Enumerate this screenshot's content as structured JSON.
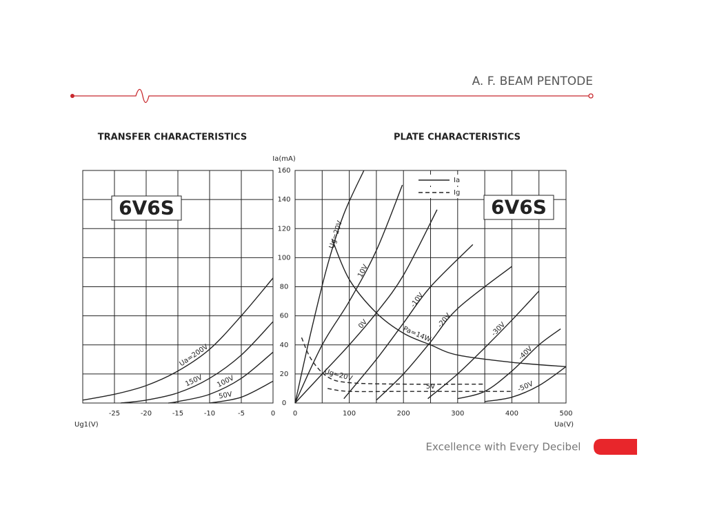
{
  "header": {
    "title": "A. F. BEAM PENTODE"
  },
  "footer": {
    "tagline": "Excellence with Every Decibel"
  },
  "chart_data": [
    {
      "type": "line",
      "title": "TRANSFER CHARACTERISTICS",
      "badge": "6V6S",
      "xlabel": "Ug1(V)",
      "xlim": [
        -30,
        0
      ],
      "xticks": [
        -25,
        -20,
        -15,
        -10,
        -5,
        0
      ],
      "ylim": [
        0,
        160
      ],
      "yticks": [
        0,
        20,
        40,
        60,
        80,
        100,
        120,
        140,
        160
      ],
      "grid": true,
      "show_yticks": false,
      "series": [
        {
          "name": "Ua=200V",
          "color": "#222222",
          "style": "solid",
          "x": [
            -30,
            -25,
            -20,
            -15,
            -10,
            -5,
            0
          ],
          "values": [
            2,
            6,
            12,
            22,
            37,
            60,
            86
          ]
        },
        {
          "name": "150V",
          "color": "#222222",
          "style": "solid",
          "x": [
            -24,
            -20,
            -15,
            -10,
            -5,
            0
          ],
          "values": [
            0,
            2,
            7,
            17,
            33,
            56
          ]
        },
        {
          "name": "100V",
          "color": "#222222",
          "style": "solid",
          "x": [
            -16.5,
            -15,
            -10,
            -5,
            0
          ],
          "values": [
            0,
            1,
            6,
            17,
            35
          ]
        },
        {
          "name": "50V",
          "color": "#222222",
          "style": "solid",
          "x": [
            -10,
            -5,
            0
          ],
          "values": [
            0,
            4,
            15
          ]
        }
      ]
    },
    {
      "type": "line",
      "title": "PLATE CHARACTERISTICS",
      "badge": "6V6S",
      "xlabel": "Ua(V)",
      "ylabel": "Ia(mA)",
      "xlim": [
        0,
        500
      ],
      "xticks": [
        0,
        100,
        200,
        300,
        400,
        500
      ],
      "xminor": [
        50,
        150,
        250,
        350,
        450
      ],
      "ylim": [
        0,
        160
      ],
      "yticks": [
        0,
        20,
        40,
        60,
        80,
        100,
        120,
        140,
        160
      ],
      "grid": true,
      "show_yticks": true,
      "legend": {
        "entries": [
          {
            "label": "Ia",
            "style": "solid"
          },
          {
            "label": "Ig",
            "style": "dashed"
          }
        ]
      },
      "series": [
        {
          "name": "Ug=20V",
          "color": "#222222",
          "style": "solid",
          "x": [
            0,
            30,
            60,
            90,
            127
          ],
          "values": [
            0,
            50,
            95,
            130,
            160
          ]
        },
        {
          "name": "10V",
          "color": "#222222",
          "style": "solid",
          "x": [
            0,
            50,
            100,
            150,
            198
          ],
          "values": [
            0,
            40,
            70,
            105,
            150
          ]
        },
        {
          "name": "0V",
          "color": "#222222",
          "style": "solid",
          "x": [
            0,
            50,
            100,
            150,
            200,
            262
          ],
          "values": [
            0,
            20,
            40,
            62,
            88,
            133
          ]
        },
        {
          "name": "-10V",
          "color": "#222222",
          "style": "solid",
          "x": [
            90,
            150,
            200,
            250,
            328
          ],
          "values": [
            3,
            30,
            55,
            80,
            109
          ]
        },
        {
          "name": "-20V",
          "color": "#222222",
          "style": "solid",
          "x": [
            150,
            200,
            250,
            300,
            400
          ],
          "values": [
            2,
            20,
            42,
            65,
            94
          ]
        },
        {
          "name": "-30V",
          "color": "#222222",
          "style": "solid",
          "x": [
            245,
            300,
            350,
            400,
            450
          ],
          "values": [
            3,
            20,
            38,
            57,
            77
          ]
        },
        {
          "name": "-40V",
          "color": "#222222",
          "style": "solid",
          "x": [
            300,
            350,
            400,
            450,
            490
          ],
          "values": [
            3,
            8,
            22,
            40,
            51
          ]
        },
        {
          "name": "-50V",
          "color": "#222222",
          "style": "solid",
          "x": [
            350,
            400,
            450,
            500
          ],
          "values": [
            1,
            4,
            12,
            25
          ]
        },
        {
          "name": "Pa=14W",
          "color": "#222222",
          "style": "solid",
          "x": [
            68,
            100,
            150,
            200,
            250,
            300,
            400,
            500
          ],
          "values": [
            113,
            85,
            62,
            48,
            40,
            33,
            28,
            25
          ]
        },
        {
          "name": "Ug=20V",
          "color": "#222222",
          "style": "dashed",
          "x": [
            12,
            30,
            60,
            100,
            200,
            350
          ],
          "values": [
            45,
            30,
            18,
            14,
            13,
            13
          ]
        },
        {
          "name": "5V",
          "color": "#222222",
          "style": "dashed",
          "x": [
            60,
            100,
            200,
            300,
            400
          ],
          "values": [
            10,
            8,
            8,
            8,
            8
          ]
        }
      ]
    }
  ]
}
